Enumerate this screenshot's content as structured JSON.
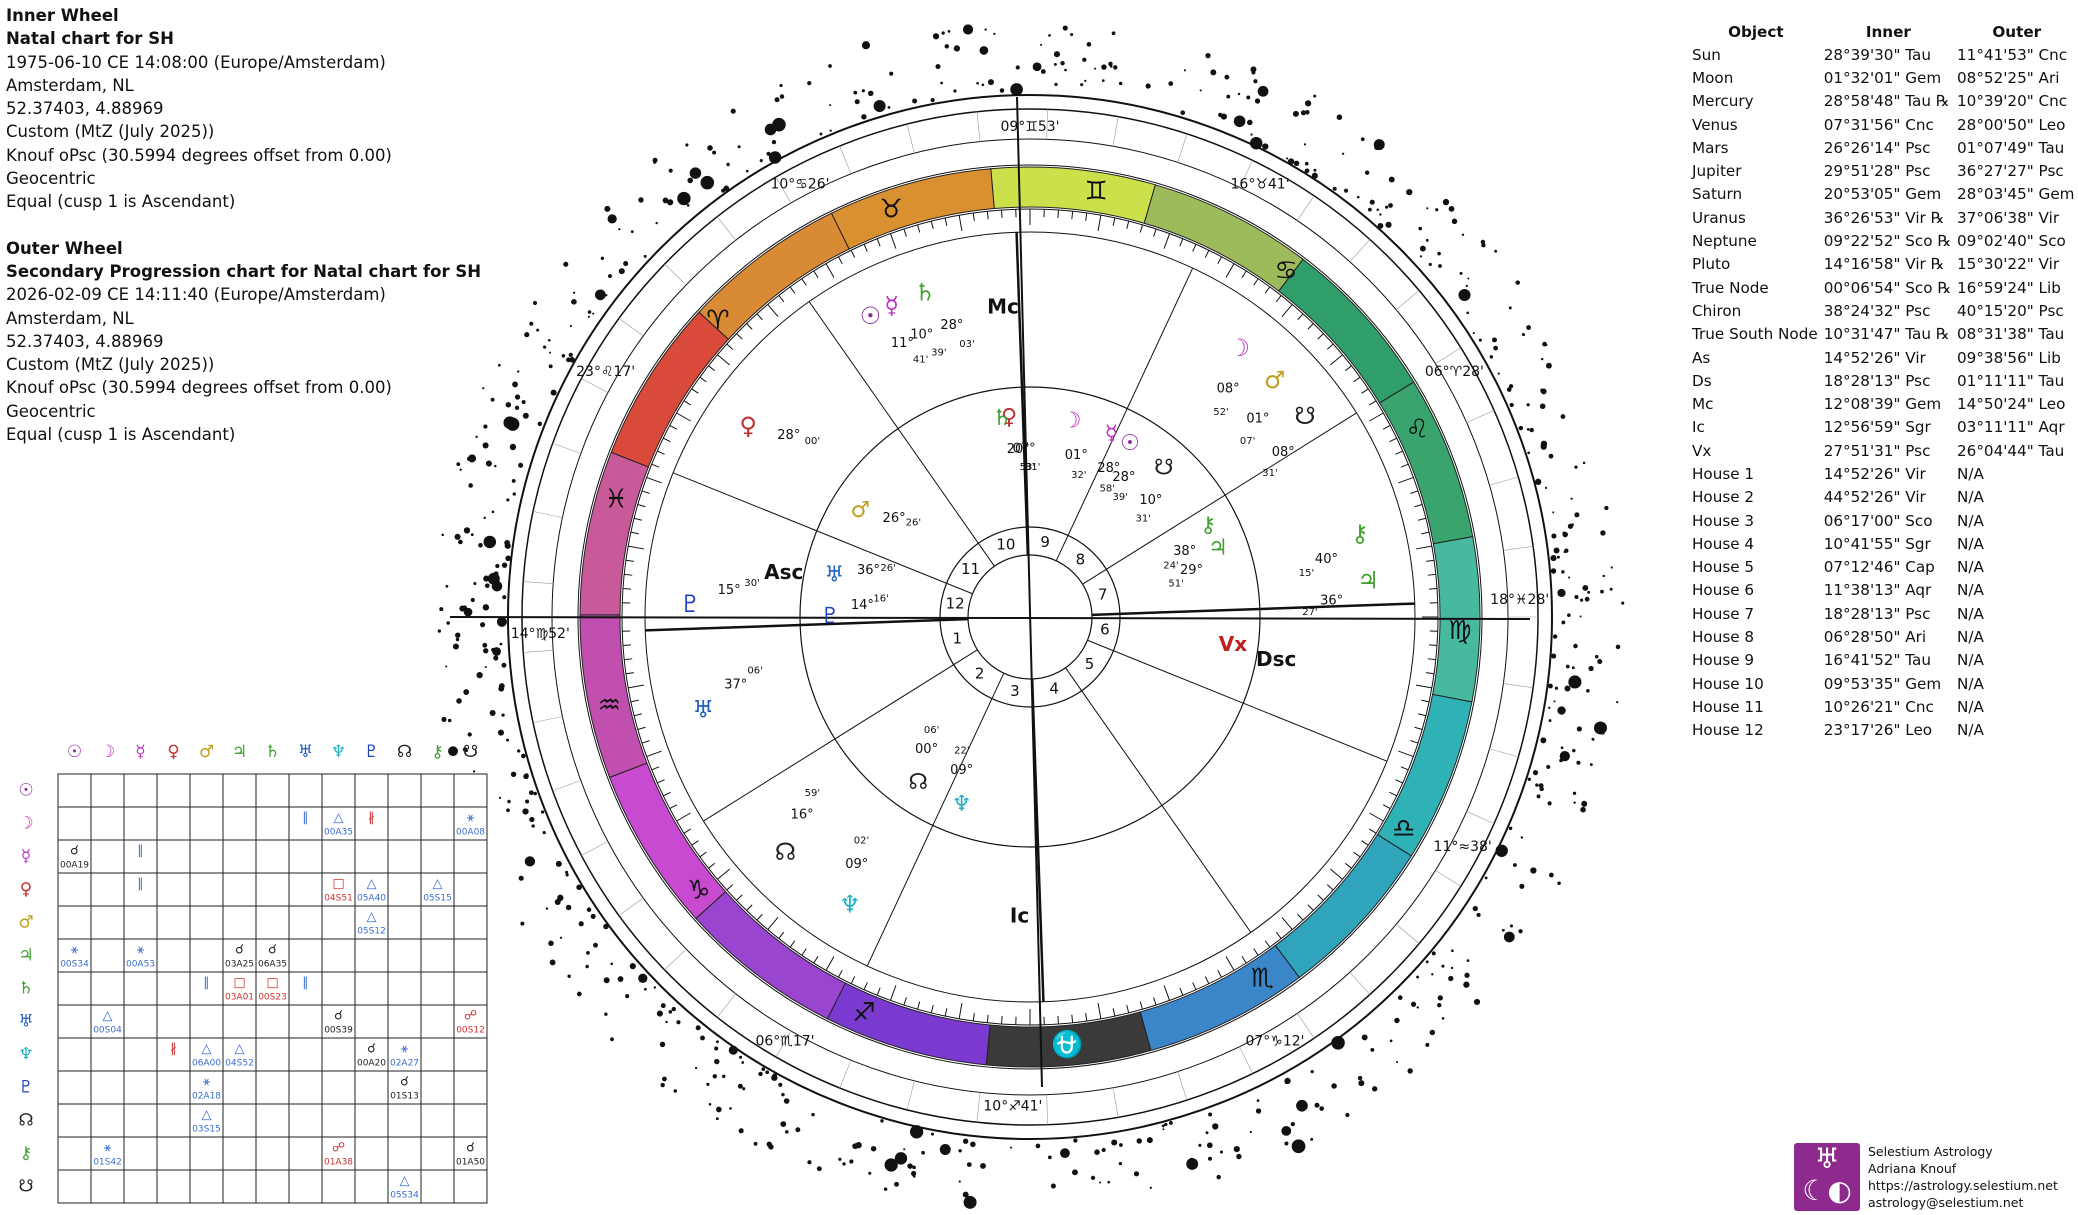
{
  "info": {
    "inner_heading": "Inner Wheel",
    "inner_title": "Natal chart for SH",
    "inner_date": "1975-06-10 CE 14:08:00 (Europe/Amsterdam)",
    "inner_place": "Amsterdam, NL",
    "inner_coords": "52.37403, 4.88969",
    "inner_zodiac": "Custom (MtZ (July 2025))",
    "inner_offset": "Knouf oPsc (30.5994 degrees offset from 0.00)",
    "inner_centric": "Geocentric",
    "inner_house": "Equal (cusp 1 is Ascendant)",
    "outer_heading": "Outer Wheel",
    "outer_title": "Secondary Progression chart for Natal chart for SH",
    "outer_date": "2026-02-09 CE 14:11:40 (Europe/Amsterdam)",
    "outer_place": "Amsterdam, NL",
    "outer_coords": "52.37403, 4.88969",
    "outer_zodiac": "Custom (MtZ (July 2025))",
    "outer_offset": "Knouf oPsc (30.5994 degrees offset from 0.00)",
    "outer_centric": "Geocentric",
    "outer_house": "Equal (cusp 1 is Ascendant)"
  },
  "table": {
    "headers": [
      "Object",
      "Inner",
      "Outer"
    ],
    "rows": [
      [
        "Sun",
        "28°39'30\" Tau",
        "11°41'53\" Cnc"
      ],
      [
        "Moon",
        "01°32'01\" Gem",
        "08°52'25\" Ari"
      ],
      [
        "Mercury",
        "28°58'48\" Tau ℞",
        "10°39'20\" Cnc"
      ],
      [
        "Venus",
        "07°31'56\" Cnc",
        "28°00'50\" Leo"
      ],
      [
        "Mars",
        "26°26'14\" Psc",
        "01°07'49\" Tau"
      ],
      [
        "Jupiter",
        "29°51'28\" Psc",
        "36°27'27\" Psc"
      ],
      [
        "Saturn",
        "20°53'05\" Gem",
        "28°03'45\" Gem"
      ],
      [
        "Uranus",
        "36°26'53\" Vir ℞",
        "37°06'38\" Vir"
      ],
      [
        "Neptune",
        "09°22'52\" Sco ℞",
        "09°02'40\" Sco"
      ],
      [
        "Pluto",
        "14°16'58\" Vir ℞",
        "15°30'22\" Vir"
      ],
      [
        "True Node",
        "00°06'54\" Sco ℞",
        "16°59'24\" Lib"
      ],
      [
        "Chiron",
        "38°24'32\" Psc",
        "40°15'20\" Psc"
      ],
      [
        "True South Node",
        "10°31'47\" Tau ℞",
        "08°31'38\" Tau"
      ],
      [
        "As",
        "14°52'26\" Vir",
        "09°38'56\" Lib"
      ],
      [
        "Ds",
        "18°28'13\" Psc",
        "01°11'11\" Tau"
      ],
      [
        "Mc",
        "12°08'39\" Gem",
        "14°50'24\" Leo"
      ],
      [
        "Ic",
        "12°56'59\" Sgr",
        "03°11'11\" Aqr"
      ],
      [
        "Vx",
        "27°51'31\" Psc",
        "26°04'44\" Tau"
      ],
      [
        "House 1",
        "14°52'26\" Vir",
        "N/A"
      ],
      [
        "House 2",
        "44°52'26\" Vir",
        "N/A"
      ],
      [
        "House 3",
        "06°17'00\" Sco",
        "N/A"
      ],
      [
        "House 4",
        "10°41'55\" Sgr",
        "N/A"
      ],
      [
        "House 5",
        "07°12'46\" Cap",
        "N/A"
      ],
      [
        "House 6",
        "11°38'13\" Aqr",
        "N/A"
      ],
      [
        "House 7",
        "18°28'13\" Psc",
        "N/A"
      ],
      [
        "House 8",
        "06°28'50\" Ari",
        "N/A"
      ],
      [
        "House 9",
        "16°41'52\" Tau",
        "N/A"
      ],
      [
        "House 10",
        "09°53'35\" Gem",
        "N/A"
      ],
      [
        "House 11",
        "10°26'21\" Cnc",
        "N/A"
      ],
      [
        "House 12",
        "23°17'26\" Leo",
        "N/A"
      ]
    ]
  },
  "wheel": {
    "sign_colors": [
      "#cbe04a",
      "#9dbb5a",
      "#2f9e6a",
      "#3aa46e",
      "#46b99f",
      "#2fb2b5",
      "#2fa4bb",
      "#3a86c8",
      "#3a3a3a",
      "#7a3ad0",
      "#9a45d0",
      "#c84ad0",
      "#c04fb0",
      "#c85a9a",
      "#d94a3a",
      "#d98a35",
      "#d99030"
    ],
    "sign_glyphs": [
      "♊",
      "♋",
      "♌",
      "♍",
      "♎",
      "♏",
      "⛎",
      "♐",
      "♑",
      "♒",
      "♓",
      "♈",
      "♉"
    ],
    "house_numbers": [
      "1",
      "2",
      "3",
      "4",
      "5",
      "6",
      "7",
      "8",
      "9",
      "10",
      "11",
      "12"
    ],
    "angle_labels": [
      "Asc",
      "Dsc",
      "Mc",
      "Ic",
      "Vx"
    ],
    "outer_cusp_labels": [
      "09°♊53'",
      "16°♉41'",
      "06°♈28'",
      "18°♓28'",
      "11°≈38'",
      "07°♑12'",
      "10°♐41'",
      "06°♏17'",
      "14°♍52'",
      "23°♌17'",
      "10°♋26'"
    ],
    "inner_planets": [
      {
        "glyph": "☉",
        "deg": "28°",
        "min": "39'"
      },
      {
        "glyph": "☽",
        "deg": "01°",
        "min": "32'"
      },
      {
        "glyph": "☿",
        "deg": "28°",
        "min": "58'"
      },
      {
        "glyph": "♀",
        "deg": "07°",
        "min": "31'"
      },
      {
        "glyph": "♂",
        "deg": "26°",
        "min": "26'"
      },
      {
        "glyph": "♃",
        "deg": "29°",
        "min": "51'"
      },
      {
        "glyph": "♄",
        "deg": "20°",
        "min": "53'"
      },
      {
        "glyph": "♅",
        "deg": "36°",
        "min": "26'"
      },
      {
        "glyph": "♆",
        "deg": "09°",
        "min": "22'"
      },
      {
        "glyph": "♇",
        "deg": "14°",
        "min": "16'"
      },
      {
        "glyph": "☊",
        "deg": "00°",
        "min": "06'"
      },
      {
        "glyph": "⚷",
        "deg": "38°",
        "min": "24'"
      },
      {
        "glyph": "☋",
        "deg": "10°",
        "min": "31'"
      }
    ],
    "outer_planets": [
      {
        "glyph": "☉",
        "deg": "11°",
        "min": "41'"
      },
      {
        "glyph": "☽",
        "deg": "08°",
        "min": "52'"
      },
      {
        "glyph": "☿",
        "deg": "10°",
        "min": "39'"
      },
      {
        "glyph": "♀",
        "deg": "28°",
        "min": "00'"
      },
      {
        "glyph": "♂",
        "deg": "01°",
        "min": "07'"
      },
      {
        "glyph": "♃",
        "deg": "36°",
        "min": "27'"
      },
      {
        "glyph": "♄",
        "deg": "28°",
        "min": "03'"
      },
      {
        "glyph": "♅",
        "deg": "37°",
        "min": "06'"
      },
      {
        "glyph": "♆",
        "deg": "09°",
        "min": "02'"
      },
      {
        "glyph": "♇",
        "deg": "15°",
        "min": "30'"
      },
      {
        "glyph": "☊",
        "deg": "16°",
        "min": "59'"
      },
      {
        "glyph": "⚷",
        "deg": "40°",
        "min": "15'"
      },
      {
        "glyph": "☋",
        "deg": "08°",
        "min": "31'"
      }
    ],
    "retrograde_mark": "℞"
  },
  "aspect_grid": {
    "glyphs": [
      "☉",
      "☽",
      "☿",
      "♀",
      "♂",
      "♃",
      "♄",
      "♅",
      "♆",
      "♇",
      "☊",
      "⚷",
      "☋"
    ],
    "glyph_colors": [
      "#8e2aa0",
      "#c030c0",
      "#c030c0",
      "#c03030",
      "#c0a020",
      "#40a030",
      "#40a030",
      "#2060c0",
      "#20b0c0",
      "#2040c0",
      "#222222",
      "#40a030",
      "#222222"
    ],
    "entries": [
      {
        "row": 1,
        "col": 7,
        "sym": "∥",
        "label": "",
        "color": "#3a6fd0"
      },
      {
        "row": 1,
        "col": 8,
        "sym": "△",
        "label": "00A35",
        "color": "#3a6fd0"
      },
      {
        "row": 1,
        "col": 9,
        "sym": "∦",
        "label": "",
        "color": "#d03030"
      },
      {
        "row": 1,
        "col": 12,
        "sym": "⚹",
        "label": "00A08",
        "color": "#3a6fd0"
      },
      {
        "row": 2,
        "col": 0,
        "sym": "☌",
        "label": "00A19",
        "color": "#222222"
      },
      {
        "row": 2,
        "col": 2,
        "sym": "∥",
        "label": "",
        "color": "#3a6fd0"
      },
      {
        "row": 3,
        "col": 2,
        "sym": "∥",
        "label": "",
        "color": "#3a6fd0"
      },
      {
        "row": 3,
        "col": 8,
        "sym": "□",
        "label": "04S51",
        "color": "#d03030"
      },
      {
        "row": 3,
        "col": 9,
        "sym": "△",
        "label": "05A40",
        "color": "#3a6fd0"
      },
      {
        "row": 3,
        "col": 11,
        "sym": "△",
        "label": "05S15",
        "color": "#3a6fd0"
      },
      {
        "row": 4,
        "col": 9,
        "sym": "△",
        "label": "05S12",
        "color": "#3a6fd0"
      },
      {
        "row": 5,
        "col": 0,
        "sym": "⚹",
        "label": "00S34",
        "color": "#3a6fd0"
      },
      {
        "row": 5,
        "col": 2,
        "sym": "⚹",
        "label": "00A53",
        "color": "#3a6fd0"
      },
      {
        "row": 5,
        "col": 5,
        "sym": "☌",
        "label": "03A25",
        "color": "#222222"
      },
      {
        "row": 5,
        "col": 6,
        "sym": "☌",
        "label": "06A35",
        "color": "#222222"
      },
      {
        "row": 6,
        "col": 4,
        "sym": "∥",
        "label": "",
        "color": "#3a6fd0"
      },
      {
        "row": 6,
        "col": 5,
        "sym": "□",
        "label": "03A01",
        "color": "#d03030"
      },
      {
        "row": 6,
        "col": 6,
        "sym": "□",
        "label": "00S23",
        "color": "#d03030"
      },
      {
        "row": 6,
        "col": 7,
        "sym": "∥",
        "label": "",
        "color": "#3a6fd0"
      },
      {
        "row": 7,
        "col": 1,
        "sym": "△",
        "label": "00S04",
        "color": "#3a6fd0"
      },
      {
        "row": 7,
        "col": 8,
        "sym": "☌",
        "label": "00S39",
        "color": "#222222"
      },
      {
        "row": 7,
        "col": 12,
        "sym": "☍",
        "label": "00S12",
        "color": "#d03030"
      },
      {
        "row": 8,
        "col": 3,
        "sym": "∦",
        "label": "",
        "color": "#d03030"
      },
      {
        "row": 8,
        "col": 4,
        "sym": "△",
        "label": "06A00",
        "color": "#3a6fd0"
      },
      {
        "row": 8,
        "col": 5,
        "sym": "△",
        "label": "04S52",
        "color": "#3a6fd0"
      },
      {
        "row": 8,
        "col": 9,
        "sym": "☌",
        "label": "00A20",
        "color": "#222222"
      },
      {
        "row": 8,
        "col": 10,
        "sym": "⚹",
        "label": "02A27",
        "color": "#3a6fd0"
      },
      {
        "row": 9,
        "col": 4,
        "sym": "⚹",
        "label": "02A18",
        "color": "#3a6fd0"
      },
      {
        "row": 9,
        "col": 10,
        "sym": "☌",
        "label": "01S13",
        "color": "#222222"
      },
      {
        "row": 10,
        "col": 4,
        "sym": "△",
        "label": "03S15",
        "color": "#3a6fd0"
      },
      {
        "row": 11,
        "col": 1,
        "sym": "⚹",
        "label": "01S42",
        "color": "#3a6fd0"
      },
      {
        "row": 11,
        "col": 8,
        "sym": "☍",
        "label": "01A38",
        "color": "#d03030"
      },
      {
        "row": 11,
        "col": 12,
        "sym": "☌",
        "label": "01A50",
        "color": "#222222"
      },
      {
        "row": 12,
        "col": 10,
        "sym": "△",
        "label": "05S34",
        "color": "#3a6fd0"
      }
    ]
  },
  "logo": {
    "line1": "Selestium Astrology",
    "line2": "Adriana Knouf",
    "line3": "https://astrology.selestium.net",
    "line4": "astrology@selestium.net"
  }
}
